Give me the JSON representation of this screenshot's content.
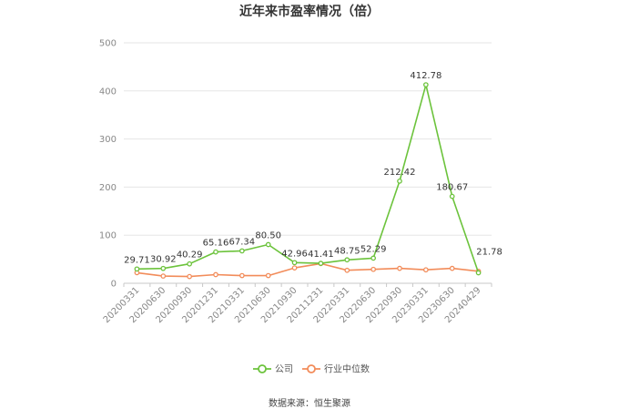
{
  "chart_data": {
    "type": "line",
    "title": "近年来市盈率情况（倍）",
    "source": "数据来源：恒生聚源",
    "ylim": [
      0,
      500
    ],
    "yticks": [
      0,
      100,
      200,
      300,
      400,
      500
    ],
    "categories": [
      "20200331",
      "20200630",
      "20200930",
      "20201231",
      "20210331",
      "20210630",
      "20210930",
      "20211231",
      "20220331",
      "20220630",
      "20220930",
      "20230331",
      "20230630",
      "20240429"
    ],
    "series": [
      {
        "name": "公司",
        "color": "#6cc33c",
        "values": [
          29.71,
          30.92,
          40.29,
          65.16,
          67.34,
          80.5,
          42.96,
          41.41,
          48.75,
          52.29,
          212.42,
          412.78,
          180.67,
          21.78
        ],
        "labels": [
          "29.71",
          "30.92",
          "40.29",
          "65.16",
          "67.34",
          "80.50",
          "42.96",
          "41.41",
          "48.75",
          "52.29",
          "212.42",
          "412.78",
          "180.67",
          "21.78"
        ]
      },
      {
        "name": "行业中位数",
        "color": "#f28c5a",
        "values": [
          22,
          15,
          14,
          18,
          16,
          16,
          32,
          41,
          27,
          29,
          31,
          28,
          31,
          25
        ]
      }
    ],
    "grid": true,
    "legend_position": "bottom"
  }
}
